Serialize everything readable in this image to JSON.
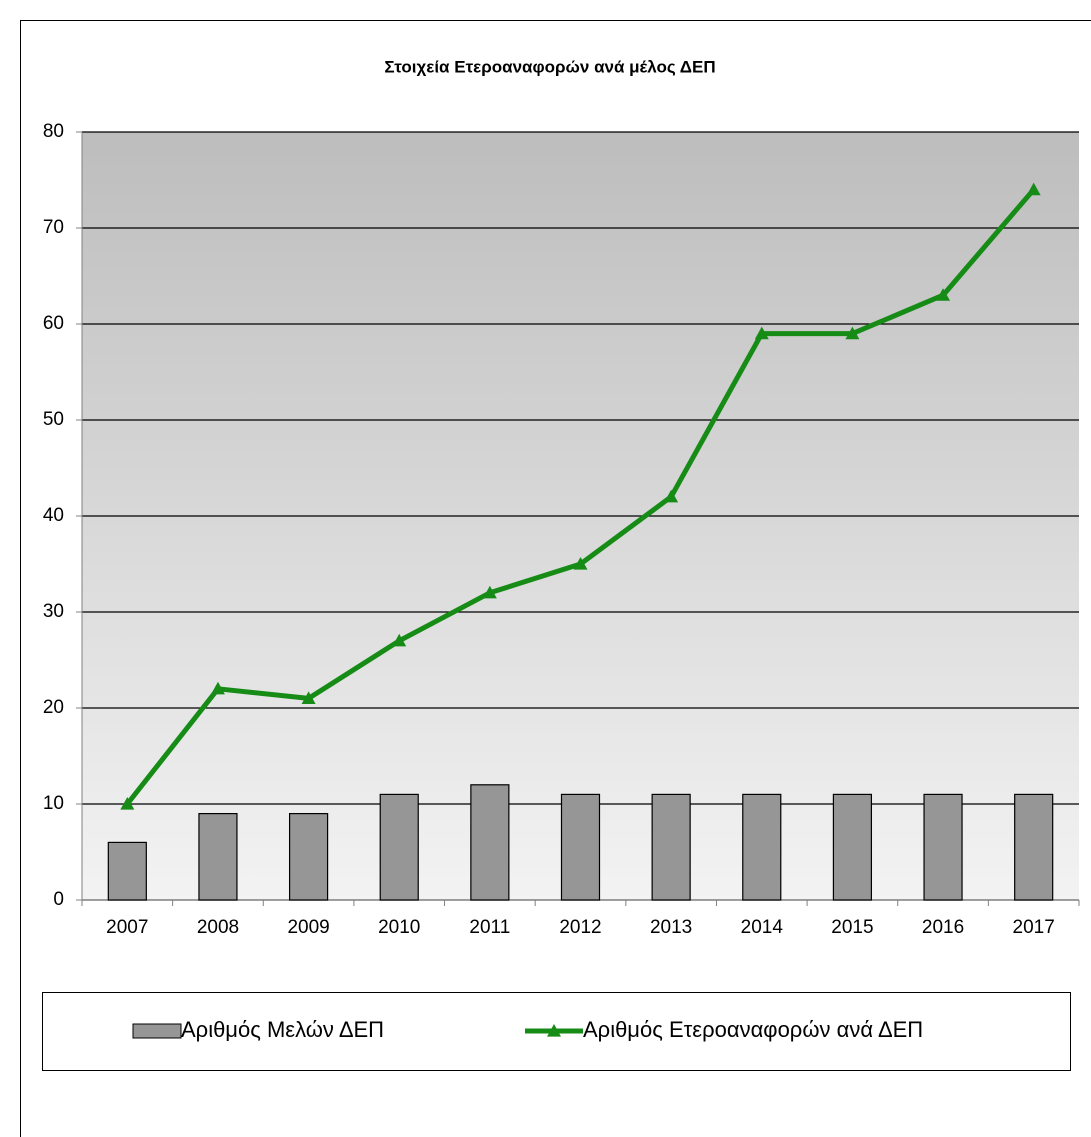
{
  "chart_data": {
    "type": "bar",
    "title": "Στοιχεία Ετεροαναφορών ανά μέλος ΔΕΠ",
    "categories": [
      "2007",
      "2008",
      "2009",
      "2010",
      "2011",
      "2012",
      "2013",
      "2014",
      "2015",
      "2016",
      "2017"
    ],
    "series": [
      {
        "name": "Αριθμός Μελών ΔΕΠ",
        "type": "bar",
        "color": "#969696",
        "values": [
          6,
          9,
          9,
          11,
          12,
          11,
          11,
          11,
          11,
          11,
          11
        ]
      },
      {
        "name": "Αριθμός Ετεροαναφορών  ανά ΔΕΠ",
        "type": "line",
        "color": "#168c16",
        "values": [
          10,
          22,
          21,
          27,
          32,
          35,
          42,
          59,
          59,
          63,
          74
        ]
      }
    ],
    "ylim": [
      0,
      80
    ],
    "yticks": [
      0,
      10,
      20,
      30,
      40,
      50,
      60,
      70,
      80
    ],
    "grid": true,
    "legend": "bottom"
  }
}
